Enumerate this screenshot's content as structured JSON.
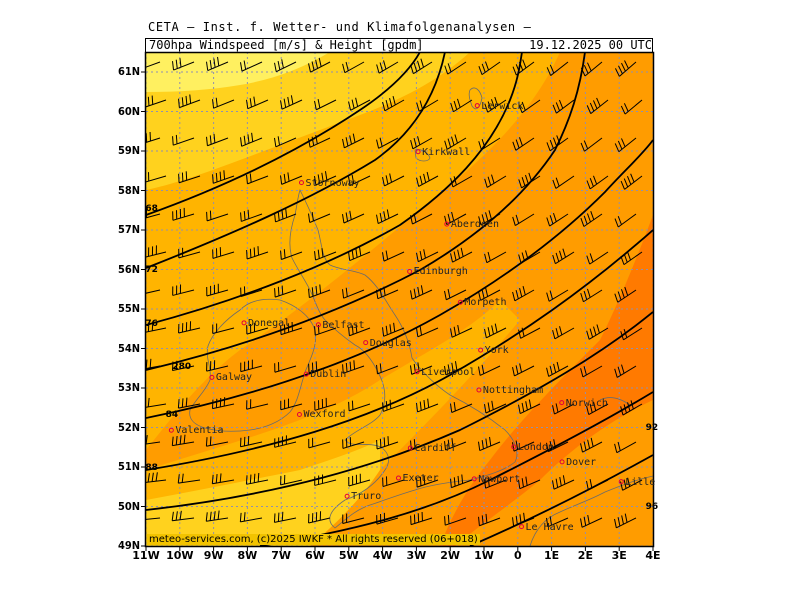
{
  "header": {
    "title": "CETA — Inst. f. Wetter- und Klimafolgenanalysen —",
    "subtitle_left": "700hpa Windspeed [m/s] & Height [gpdm]",
    "subtitle_right": "19.12.2025 00 UTC"
  },
  "axes": {
    "lat_labels": [
      "61N",
      "60N",
      "59N",
      "58N",
      "57N",
      "56N",
      "55N",
      "54N",
      "53N",
      "52N",
      "51N",
      "50N",
      "49N"
    ],
    "lon_labels": [
      "11W",
      "10W",
      "9W",
      "8W",
      "7W",
      "6W",
      "5W",
      "4W",
      "3W",
      "2W",
      "1W",
      "0",
      "1E",
      "2E",
      "3E",
      "4E"
    ]
  },
  "cities": [
    {
      "name": "Lerwick",
      "lon": -1.2,
      "lat": 60.15
    },
    {
      "name": "Kirkwall",
      "lon": -2.95,
      "lat": 58.98
    },
    {
      "name": "Stornoway",
      "lon": -6.4,
      "lat": 58.2
    },
    {
      "name": "Aberdeen",
      "lon": -2.1,
      "lat": 57.15
    },
    {
      "name": "Edinburgh",
      "lon": -3.2,
      "lat": 55.95
    },
    {
      "name": "Douglas",
      "lon": -4.5,
      "lat": 54.15
    },
    {
      "name": "Morpeth",
      "lon": -1.7,
      "lat": 55.17
    },
    {
      "name": "Donegal",
      "lon": -8.1,
      "lat": 54.65
    },
    {
      "name": "Belfast",
      "lon": -5.9,
      "lat": 54.6
    },
    {
      "name": "York",
      "lon": -1.1,
      "lat": 53.96
    },
    {
      "name": "Galway",
      "lon": -9.05,
      "lat": 53.27
    },
    {
      "name": "Dublin",
      "lon": -6.26,
      "lat": 53.35
    },
    {
      "name": "Liverpool",
      "lon": -2.98,
      "lat": 53.41
    },
    {
      "name": "Nottingham",
      "lon": -1.15,
      "lat": 52.95
    },
    {
      "name": "Norwich",
      "lon": 1.3,
      "lat": 52.63
    },
    {
      "name": "Valentia",
      "lon": -10.25,
      "lat": 51.93
    },
    {
      "name": "Wexford",
      "lon": -6.46,
      "lat": 52.33
    },
    {
      "name": "Cardiff",
      "lon": -3.18,
      "lat": 51.48
    },
    {
      "name": "London",
      "lon": -0.12,
      "lat": 51.51
    },
    {
      "name": "Dover",
      "lon": 1.31,
      "lat": 51.13
    },
    {
      "name": "Exeter",
      "lon": -3.53,
      "lat": 50.72
    },
    {
      "name": "Newport",
      "lon": -1.29,
      "lat": 50.7
    },
    {
      "name": "Truro",
      "lon": -5.05,
      "lat": 50.26
    },
    {
      "name": "Lille",
      "lon": 3.06,
      "lat": 50.63
    },
    {
      "name": "Le Havre",
      "lon": 0.11,
      "lat": 49.49
    }
  ],
  "contour_labels": [
    {
      "text": "68",
      "lon": -10.9,
      "lat": 57.5
    },
    {
      "text": "72",
      "lon": -10.9,
      "lat": 55.95
    },
    {
      "text": "76",
      "lon": -10.9,
      "lat": 54.6
    },
    {
      "text": "280",
      "lon": -10.1,
      "lat": 53.5
    },
    {
      "text": "84",
      "lon": -10.3,
      "lat": 52.3
    },
    {
      "text": "88",
      "lon": -10.9,
      "lat": 50.95
    },
    {
      "text": "92",
      "lon": 3.9,
      "lat": 51.95
    },
    {
      "text": "96",
      "lon": 3.9,
      "lat": 49.95
    }
  ],
  "copyright": "meteo-services.com, (c)2025 IWKF * All rights reserved (06+018)",
  "colors": {
    "speed_light": "#fff060",
    "speed_yellow": "#ffd21e",
    "speed_gold": "#ffb400",
    "speed_orange": "#ff9800",
    "speed_dark": "#ff7a00",
    "grid": "#8f8fb0",
    "coast": "#6b6b6b",
    "city": "#e0003c"
  }
}
